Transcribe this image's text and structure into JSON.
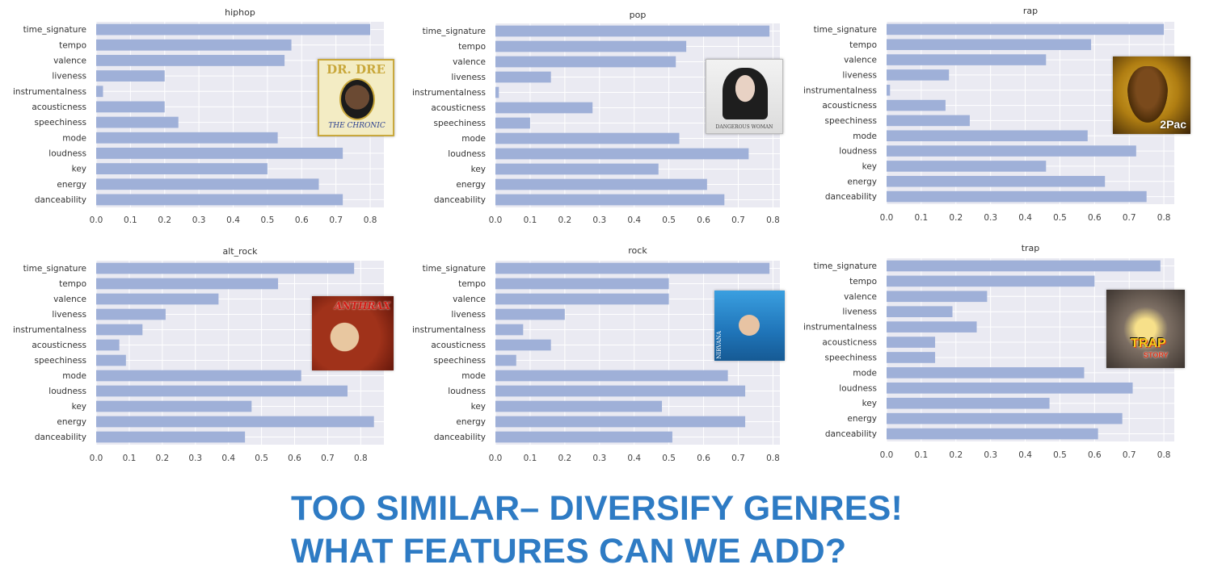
{
  "chart_data": [
    {
      "type": "bar",
      "orientation": "horizontal",
      "title": "hiphop",
      "categories": [
        "time_signature",
        "tempo",
        "valence",
        "liveness",
        "instrumentalness",
        "acousticness",
        "speechiness",
        "mode",
        "loudness",
        "key",
        "energy",
        "danceability"
      ],
      "values": [
        0.8,
        0.57,
        0.55,
        0.2,
        0.02,
        0.2,
        0.24,
        0.53,
        0.72,
        0.5,
        0.65,
        0.72
      ],
      "xlim": [
        0,
        0.84
      ],
      "xticks": [
        "0.0",
        "0.1",
        "0.2",
        "0.3",
        "0.4",
        "0.5",
        "0.6",
        "0.7",
        "0.8"
      ],
      "grid": true,
      "bar_color": "#9fb0d8",
      "album_cover": "The Chronic"
    },
    {
      "type": "bar",
      "orientation": "horizontal",
      "title": "pop",
      "categories": [
        "time_signature",
        "tempo",
        "valence",
        "liveness",
        "instrumentalness",
        "acousticness",
        "speechiness",
        "mode",
        "loudness",
        "key",
        "energy",
        "danceability"
      ],
      "values": [
        0.79,
        0.55,
        0.52,
        0.16,
        0.01,
        0.28,
        0.1,
        0.53,
        0.73,
        0.47,
        0.61,
        0.66
      ],
      "xlim": [
        0,
        0.82
      ],
      "xticks": [
        "0.0",
        "0.1",
        "0.2",
        "0.3",
        "0.4",
        "0.5",
        "0.6",
        "0.7",
        "0.8"
      ],
      "grid": true,
      "bar_color": "#9fb0d8",
      "album_cover": "Dangerous Woman"
    },
    {
      "type": "bar",
      "orientation": "horizontal",
      "title": "rap",
      "categories": [
        "time_signature",
        "tempo",
        "valence",
        "liveness",
        "instrumentalness",
        "acousticness",
        "speechiness",
        "mode",
        "loudness",
        "key",
        "energy",
        "danceability"
      ],
      "values": [
        0.8,
        0.59,
        0.46,
        0.18,
        0.01,
        0.17,
        0.24,
        0.58,
        0.72,
        0.46,
        0.63,
        0.75
      ],
      "xlim": [
        0,
        0.83
      ],
      "xticks": [
        "0.0",
        "0.1",
        "0.2",
        "0.3",
        "0.4",
        "0.5",
        "0.6",
        "0.7",
        "0.8"
      ],
      "grid": true,
      "bar_color": "#9fb0d8",
      "album_cover": "2Pac"
    },
    {
      "type": "bar",
      "orientation": "horizontal",
      "title": "alt_rock",
      "categories": [
        "time_signature",
        "tempo",
        "valence",
        "liveness",
        "instrumentalness",
        "acousticness",
        "speechiness",
        "mode",
        "loudness",
        "key",
        "energy",
        "danceability"
      ],
      "values": [
        0.78,
        0.55,
        0.37,
        0.21,
        0.14,
        0.07,
        0.09,
        0.62,
        0.76,
        0.47,
        0.84,
        0.45
      ],
      "xlim": [
        0,
        0.87
      ],
      "xticks": [
        "0.0",
        "0.1",
        "0.2",
        "0.3",
        "0.4",
        "0.5",
        "0.6",
        "0.7",
        "0.8"
      ],
      "grid": true,
      "bar_color": "#9fb0d8",
      "album_cover": "Anthrax"
    },
    {
      "type": "bar",
      "orientation": "horizontal",
      "title": "rock",
      "categories": [
        "time_signature",
        "tempo",
        "valence",
        "liveness",
        "instrumentalness",
        "acousticness",
        "speechiness",
        "mode",
        "loudness",
        "key",
        "energy",
        "danceability"
      ],
      "values": [
        0.79,
        0.5,
        0.5,
        0.2,
        0.08,
        0.16,
        0.06,
        0.67,
        0.72,
        0.48,
        0.72,
        0.51
      ],
      "xlim": [
        0,
        0.82
      ],
      "xticks": [
        "0.0",
        "0.1",
        "0.2",
        "0.3",
        "0.4",
        "0.5",
        "0.6",
        "0.7",
        "0.8"
      ],
      "grid": true,
      "bar_color": "#9fb0d8",
      "album_cover": "Nirvana"
    },
    {
      "type": "bar",
      "orientation": "horizontal",
      "title": "trap",
      "categories": [
        "time_signature",
        "tempo",
        "valence",
        "liveness",
        "instrumentalness",
        "acousticness",
        "speechiness",
        "mode",
        "loudness",
        "key",
        "energy",
        "danceability"
      ],
      "values": [
        0.79,
        0.6,
        0.29,
        0.19,
        0.26,
        0.14,
        0.14,
        0.57,
        0.71,
        0.47,
        0.68,
        0.61
      ],
      "xlim": [
        0,
        0.83
      ],
      "xticks": [
        "0.0",
        "0.1",
        "0.2",
        "0.3",
        "0.4",
        "0.5",
        "0.6",
        "0.7",
        "0.8"
      ],
      "grid": true,
      "bar_color": "#9fb0d8",
      "album_cover": "Trap Story"
    }
  ],
  "covers": {
    "chronic": {
      "brand": "DR. DRE",
      "album": "THE CHRONIC",
      "colors": [
        "#f3ecc4",
        "#c9a83c",
        "#2a3f8f"
      ]
    },
    "pop": {
      "small": "DANGEROUS WOMAN",
      "colors": [
        "#e9e9e9",
        "#1e1e1e"
      ]
    },
    "pac": {
      "artist": "2Pac",
      "colors": [
        "#c79a1c",
        "#4a2c08"
      ]
    },
    "anthrax": {
      "artist": "ANTHRAX",
      "colors": [
        "#d21e16",
        "#8c2b12",
        "#e8c7a0"
      ]
    },
    "nirvana": {
      "artist": "NIRVANA",
      "colors": [
        "#2b8ecf",
        "#1a5f9e"
      ]
    },
    "trap": {
      "title": "TRAP",
      "subtitle": "STORY",
      "colors": [
        "#cfc9c2",
        "#e03a1e",
        "#f2cf1d"
      ]
    }
  },
  "caption": {
    "line1": "TOO SIMILAR– DIVERSIFY GENRES!",
    "line2": "WHAT FEATURES CAN WE ADD?"
  }
}
